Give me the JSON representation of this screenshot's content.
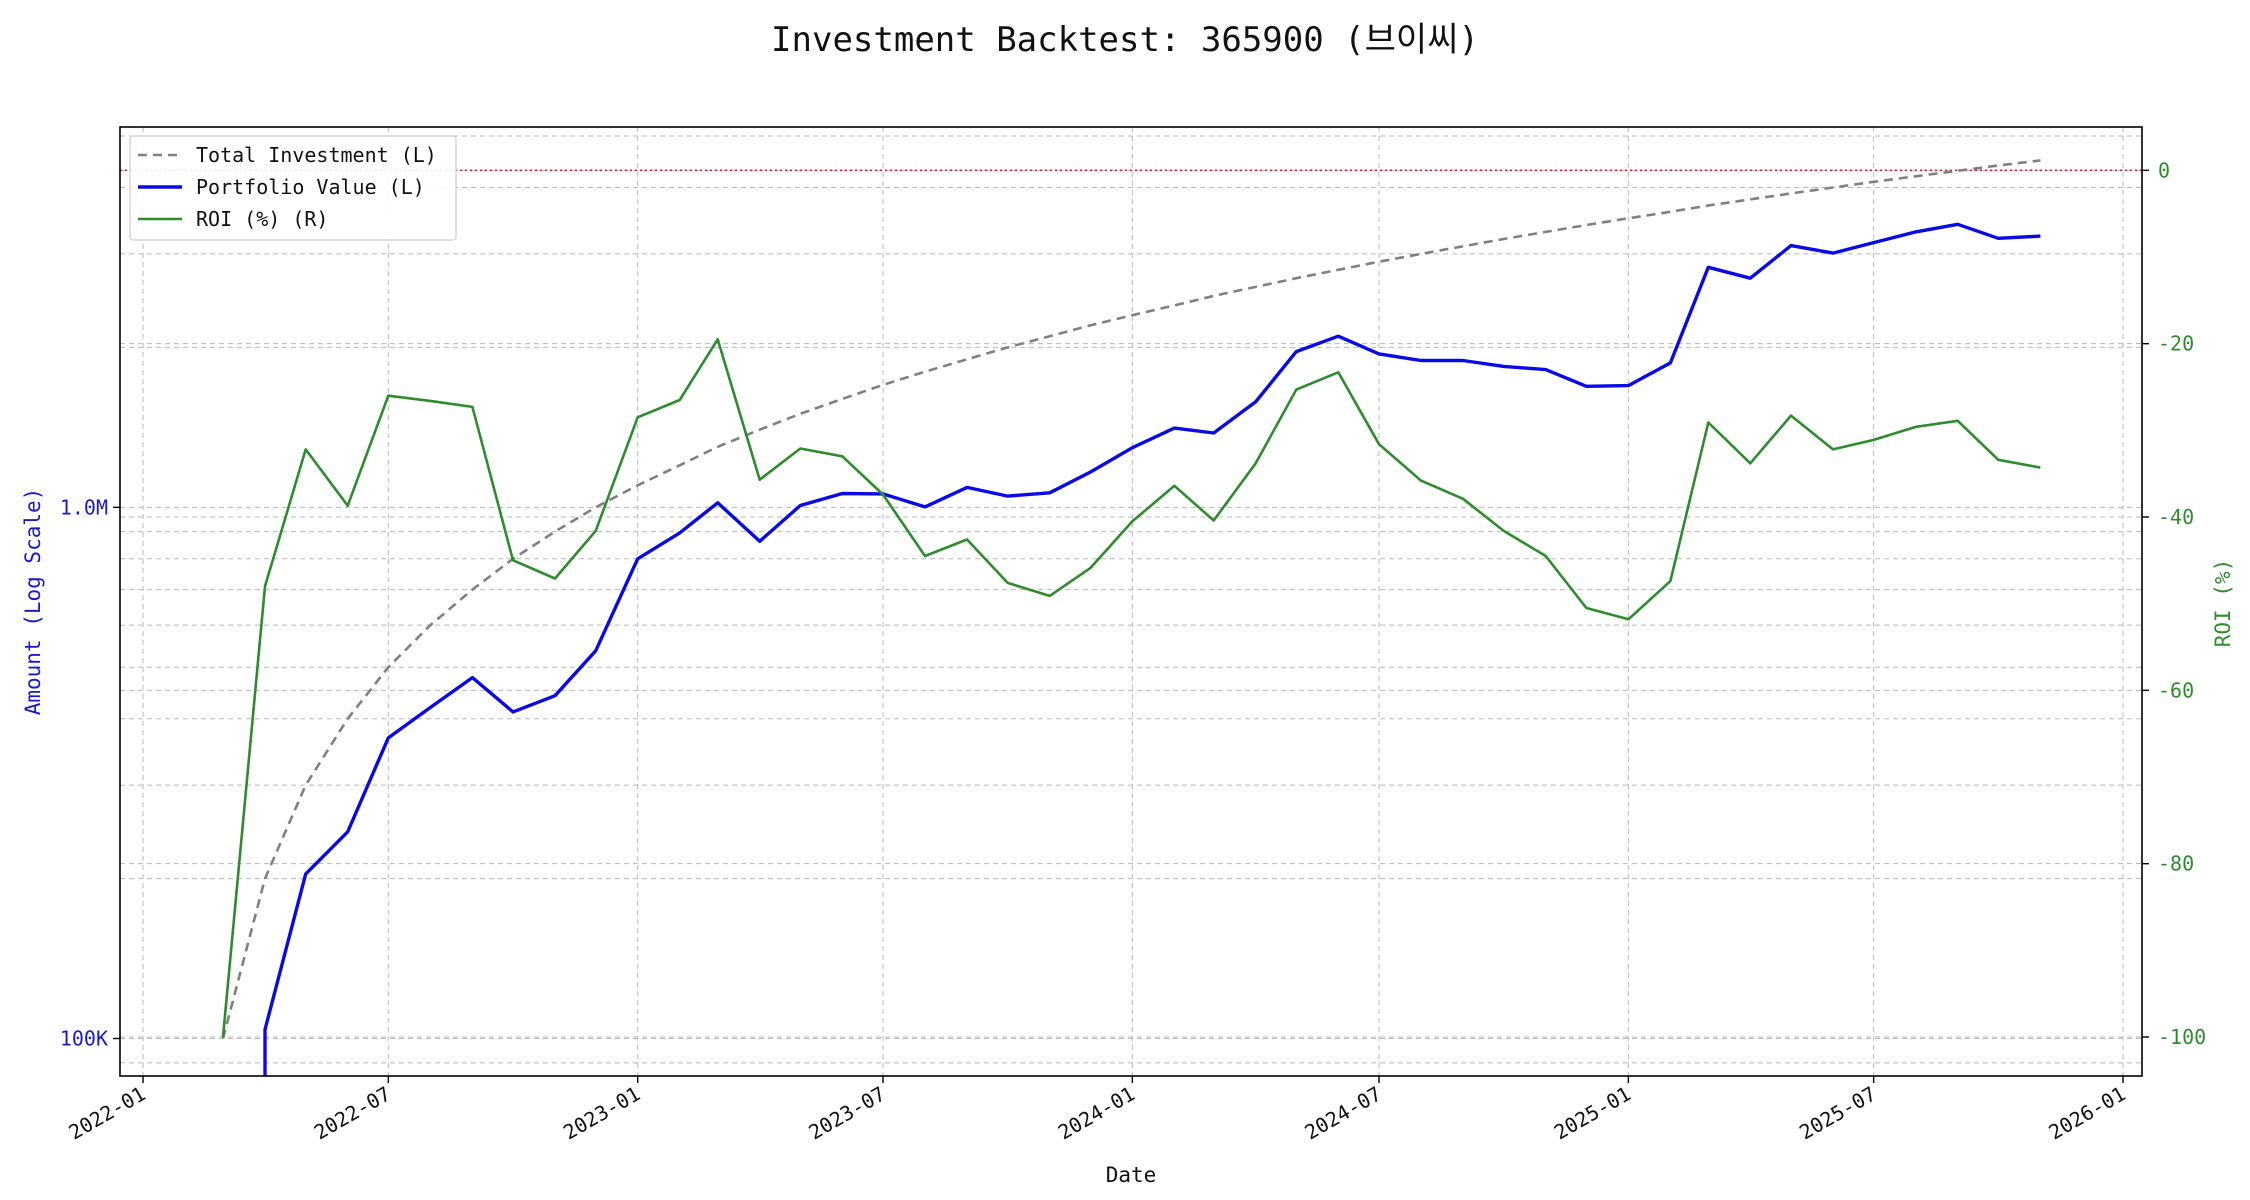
{
  "colors": {
    "investment": "#808080",
    "portfolio": "#0a0ae6",
    "roi": "#2e8b2e",
    "breakeven": "#dd2222",
    "left_axis_text": "#1a1acc",
    "right_axis_text": "#2e8b2e",
    "grid": "#b8b8b8"
  },
  "chart_data": {
    "type": "line",
    "title": "Investment Backtest: 365900 (브이씨)",
    "xlabel": "Date",
    "ylabel_left": "Amount (Log Scale)",
    "ylabel_right": "ROI (%)",
    "left_scale": "log",
    "grid": true,
    "legend_position": "top-left",
    "xlim": [
      "2021-12-15",
      "2026-01-15"
    ],
    "ylim_left": [
      85000,
      5200000
    ],
    "ylim_right": [
      -104.5,
      5
    ],
    "x_ticks": [
      "2022-01",
      "2022-07",
      "2023-01",
      "2023-07",
      "2024-01",
      "2024-07",
      "2025-01",
      "2025-07",
      "2026-01"
    ],
    "y_left_ticks": [
      {
        "value": 100000,
        "label": "100K"
      },
      {
        "value": 1000000,
        "label": "1.0M"
      }
    ],
    "y_right_ticks": [
      0,
      -20,
      -40,
      -60,
      -80,
      -100
    ],
    "x": [
      "2022-03-01",
      "2022-04-01",
      "2022-05-01",
      "2022-06-01",
      "2022-07-01",
      "2022-08-01",
      "2022-09-01",
      "2022-10-01",
      "2022-11-01",
      "2022-12-01",
      "2023-01-01",
      "2023-02-01",
      "2023-03-01",
      "2023-04-01",
      "2023-05-01",
      "2023-06-01",
      "2023-07-01",
      "2023-08-01",
      "2023-09-01",
      "2023-10-01",
      "2023-11-01",
      "2023-12-01",
      "2024-01-01",
      "2024-02-01",
      "2024-03-01",
      "2024-04-01",
      "2024-05-01",
      "2024-06-01",
      "2024-07-01",
      "2024-08-01",
      "2024-09-01",
      "2024-10-01",
      "2024-11-01",
      "2024-12-01",
      "2025-01-01",
      "2025-02-01",
      "2025-03-01",
      "2025-04-01",
      "2025-05-01",
      "2025-06-01",
      "2025-07-01",
      "2025-08-01",
      "2025-09-01",
      "2025-10-01",
      "2025-11-01"
    ],
    "series": [
      {
        "name": "Total Investment (L)",
        "axis": "left",
        "style": "dashed",
        "values": [
          100000,
          200000,
          300000,
          400000,
          500000,
          600000,
          700000,
          800000,
          900000,
          1000000,
          1100000,
          1200000,
          1300000,
          1400000,
          1500000,
          1600000,
          1700000,
          1800000,
          1900000,
          2000000,
          2100000,
          2200000,
          2300000,
          2400000,
          2500000,
          2600000,
          2700000,
          2800000,
          2900000,
          3000000,
          3100000,
          3200000,
          3300000,
          3400000,
          3500000,
          3600000,
          3700000,
          3800000,
          3900000,
          4000000,
          4100000,
          4200000,
          4300000,
          4400000,
          4500000
        ]
      },
      {
        "name": "Portfolio Value (L)",
        "axis": "left",
        "style": "solid",
        "values": [
          null,
          104000,
          204000,
          245000,
          368000,
          420000,
          478000,
          412000,
          442000,
          537000,
          800000,
          895000,
          1020000,
          863000,
          1008000,
          1062000,
          1060000,
          1002000,
          1090000,
          1050000,
          1065000,
          1165000,
          1295000,
          1410000,
          1380000,
          1580000,
          1964000,
          2100000,
          1945000,
          1890000,
          1890000,
          1842000,
          1817000,
          1690000,
          1695000,
          1870000,
          2830000,
          2700000,
          3110000,
          3010000,
          3150000,
          3300000,
          3410000,
          3210000,
          3240000
        ]
      },
      {
        "name": "ROI (%) (R)",
        "axis": "right",
        "style": "solid",
        "values": [
          -100,
          -48,
          -32.2,
          -38.7,
          -26,
          -26.6,
          -27.3,
          -45,
          -47.1,
          -41.6,
          -28.5,
          -26.5,
          -19.5,
          -35.7,
          -32.1,
          -33,
          -37.4,
          -44.5,
          -42.6,
          -47.6,
          -49.1,
          -45.9,
          -40.5,
          -36.4,
          -40.4,
          -33.8,
          -25.3,
          -23.3,
          -31.6,
          -35.8,
          -37.9,
          -41.6,
          -44.5,
          -50.5,
          -51.8,
          -47.4,
          -29.1,
          -33.8,
          -28.3,
          -32.2,
          -31.1,
          -29.6,
          -28.9,
          -33.4,
          -34.3
        ]
      }
    ],
    "reference_line": {
      "axis": "right",
      "value": 0,
      "style": "dotted"
    }
  }
}
